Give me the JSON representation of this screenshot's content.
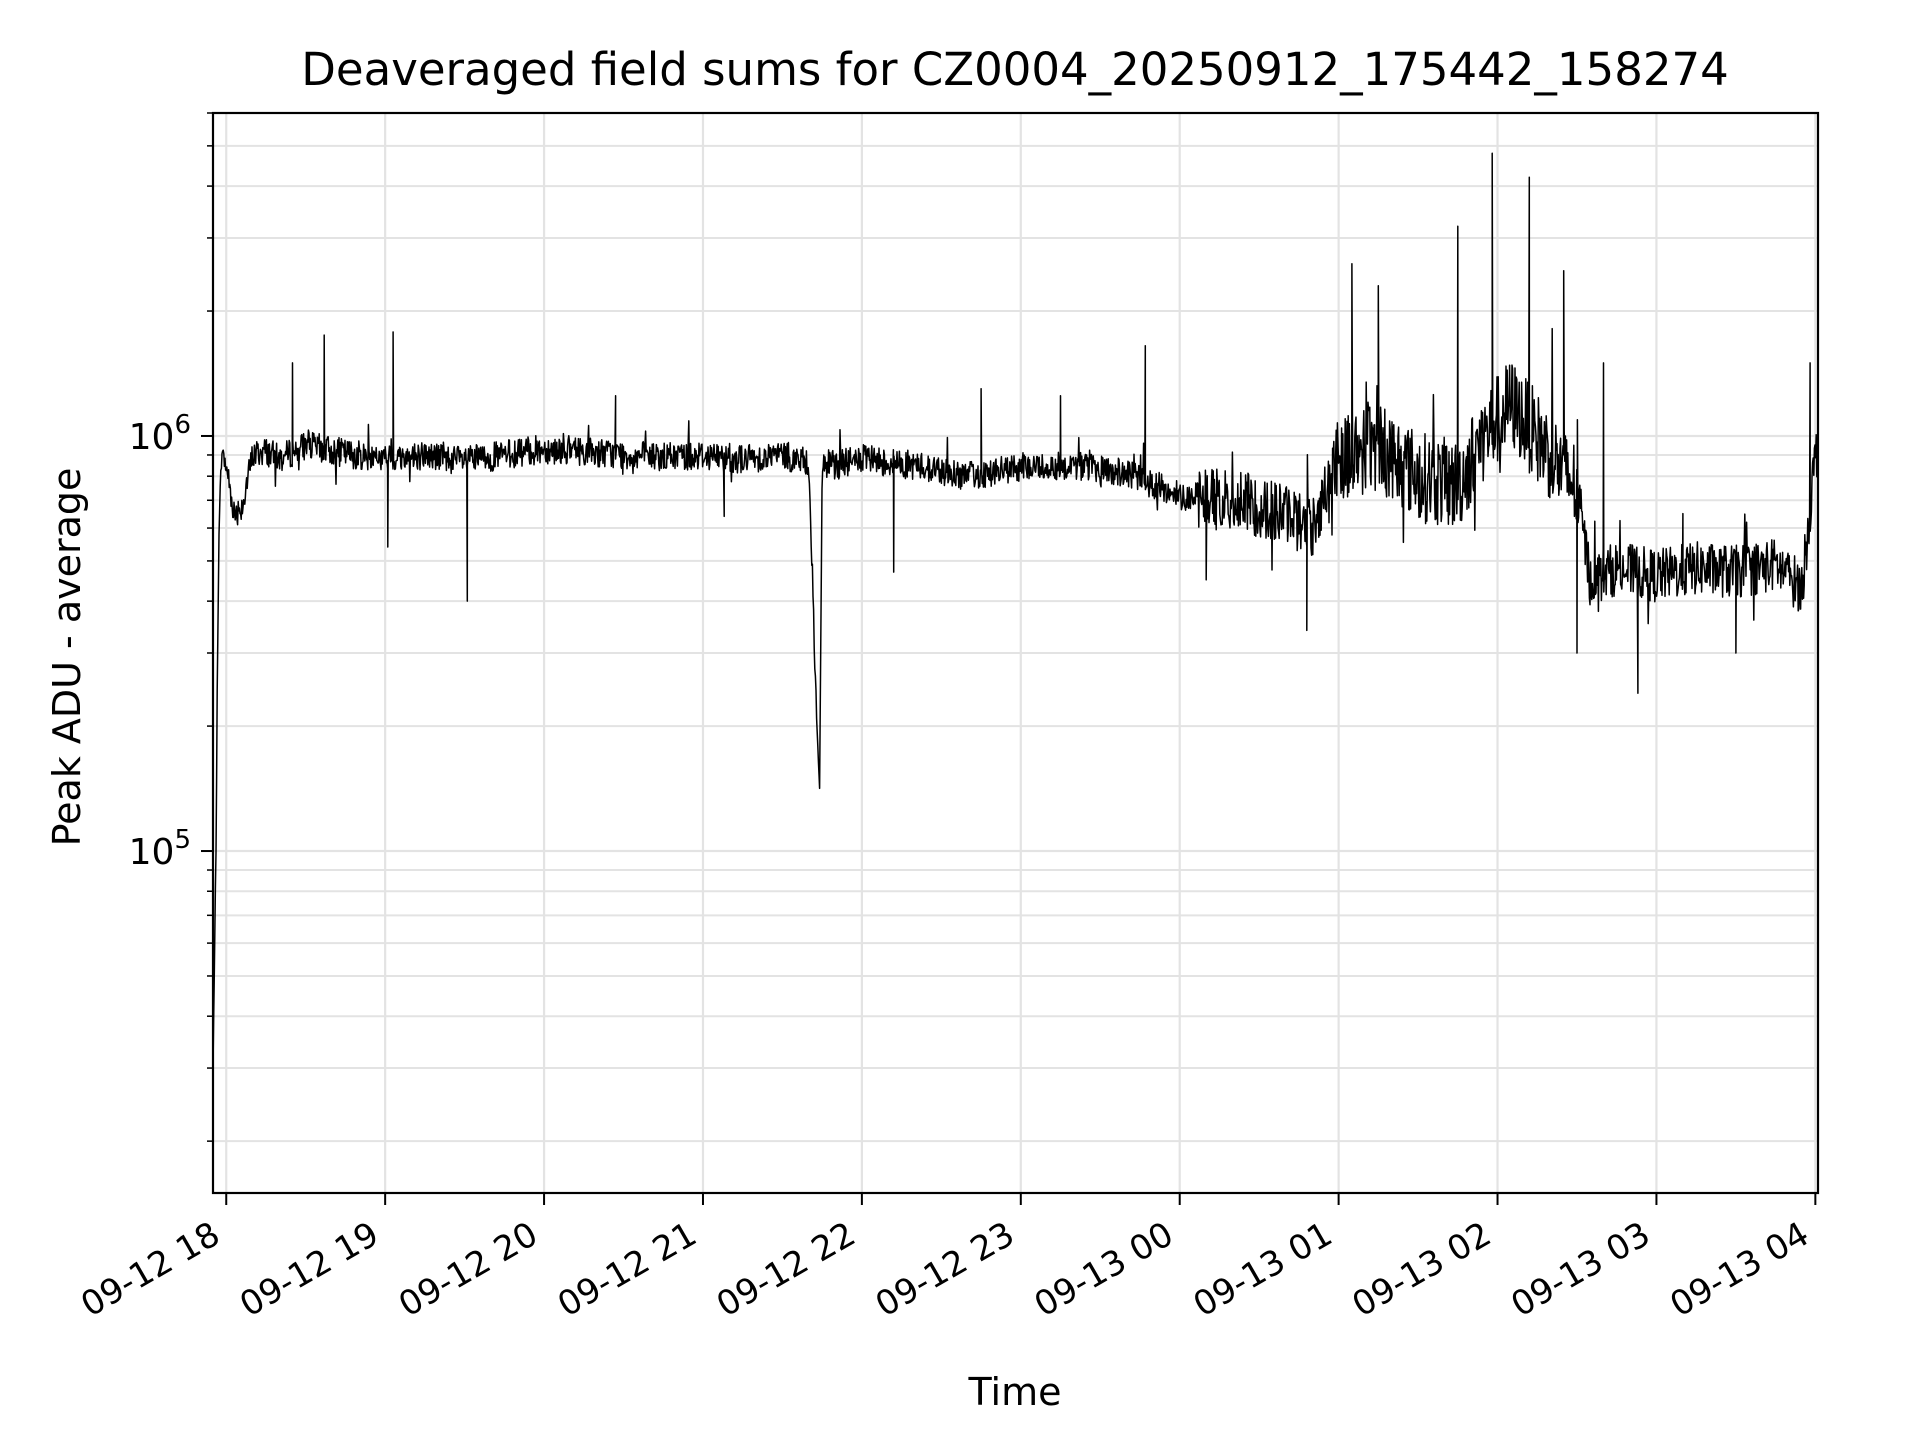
{
  "chart_data": {
    "type": "line",
    "title": "Deaveraged field sums for CZ0004_20250912_175442_158274",
    "xlabel": "Time",
    "ylabel": "Peak ADU - average",
    "yscale": "log",
    "ylim": [
      15000,
      6000000
    ],
    "xlim": [
      "2025-09-12 17:55",
      "2025-09-13 04:01"
    ],
    "grid": true,
    "line_color": "#000000",
    "x_ticks": [
      {
        "value": "2025-09-12 18:00",
        "label": "09-12 18"
      },
      {
        "value": "2025-09-12 19:00",
        "label": "09-12 19"
      },
      {
        "value": "2025-09-12 20:00",
        "label": "09-12 20"
      },
      {
        "value": "2025-09-12 21:00",
        "label": "09-12 21"
      },
      {
        "value": "2025-09-12 22:00",
        "label": "09-12 22"
      },
      {
        "value": "2025-09-12 23:00",
        "label": "09-12 23"
      },
      {
        "value": "2025-09-13 00:00",
        "label": "09-13 00"
      },
      {
        "value": "2025-09-13 01:00",
        "label": "09-13 01"
      },
      {
        "value": "2025-09-13 02:00",
        "label": "09-13 02"
      },
      {
        "value": "2025-09-13 03:00",
        "label": "09-13 03"
      },
      {
        "value": "2025-09-13 04:00",
        "label": "09-13 04"
      }
    ],
    "y_ticks": [
      {
        "value": 100000,
        "base": "10",
        "exp": "5"
      },
      {
        "value": 1000000,
        "base": "10",
        "exp": "6"
      }
    ],
    "series": [
      {
        "x": [
          "2025-09-12 17:55",
          "2025-09-12 17:56",
          "2025-09-12 17:57",
          "2025-09-12 17:58",
          "2025-09-12 18:00",
          "2025-09-12 18:03",
          "2025-09-12 18:06",
          "2025-09-12 18:10",
          "2025-09-12 18:15",
          "2025-09-12 18:20",
          "2025-09-12 18:30",
          "2025-09-12 18:40",
          "2025-09-12 18:50",
          "2025-09-12 19:00",
          "2025-09-12 19:15",
          "2025-09-12 19:30",
          "2025-09-12 19:45",
          "2025-09-12 20:00",
          "2025-09-12 20:15",
          "2025-09-12 20:30",
          "2025-09-12 20:45",
          "2025-09-12 21:00",
          "2025-09-12 21:15",
          "2025-09-12 21:30",
          "2025-09-12 21:40",
          "2025-09-12 21:43",
          "2025-09-12 21:44",
          "2025-09-12 21:45",
          "2025-09-12 21:50",
          "2025-09-12 22:00",
          "2025-09-12 22:20",
          "2025-09-12 22:40",
          "2025-09-12 23:00",
          "2025-09-12 23:20",
          "2025-09-12 23:40",
          "2025-09-13 00:00",
          "2025-09-13 00:20",
          "2025-09-13 00:40",
          "2025-09-13 00:50",
          "2025-09-13 01:00",
          "2025-09-13 01:15",
          "2025-09-13 01:30",
          "2025-09-13 01:45",
          "2025-09-13 01:55",
          "2025-09-13 02:05",
          "2025-09-13 02:20",
          "2025-09-13 02:30",
          "2025-09-13 02:35",
          "2025-09-13 02:45",
          "2025-09-13 03:00",
          "2025-09-13 03:15",
          "2025-09-13 03:30",
          "2025-09-13 03:45",
          "2025-09-13 03:55",
          "2025-09-13 04:00"
        ],
        "y": [
          30000,
          85000,
          450000,
          900000,
          850000,
          650000,
          680000,
          900000,
          920000,
          880000,
          950000,
          920000,
          900000,
          880000,
          900000,
          870000,
          900000,
          930000,
          920000,
          900000,
          890000,
          900000,
          880000,
          900000,
          860000,
          200000,
          130000,
          860000,
          850000,
          880000,
          850000,
          800000,
          840000,
          850000,
          810000,
          720000,
          700000,
          650000,
          600000,
          900000,
          950000,
          800000,
          760000,
          1000000,
          1200000,
          900000,
          750000,
          450000,
          480000,
          460000,
          480000,
          470000,
          490000,
          430000,
          900000
        ]
      }
    ],
    "spikes": [
      {
        "x": "2025-09-12 18:25",
        "y": 1500000
      },
      {
        "x": "2025-09-12 18:37",
        "y": 1750000
      },
      {
        "x": "2025-09-12 19:03",
        "y": 1780000
      },
      {
        "x": "2025-09-12 19:01",
        "y": 540000
      },
      {
        "x": "2025-09-12 19:31",
        "y": 400000
      },
      {
        "x": "2025-09-12 20:27",
        "y": 1250000
      },
      {
        "x": "2025-09-12 21:08",
        "y": 640000
      },
      {
        "x": "2025-09-12 22:12",
        "y": 470000
      },
      {
        "x": "2025-09-12 22:45",
        "y": 1300000
      },
      {
        "x": "2025-09-12 23:15",
        "y": 1250000
      },
      {
        "x": "2025-09-12 23:47",
        "y": 1650000
      },
      {
        "x": "2025-09-13 00:10",
        "y": 450000
      },
      {
        "x": "2025-09-13 00:48",
        "y": 340000
      },
      {
        "x": "2025-09-13 01:05",
        "y": 2600000
      },
      {
        "x": "2025-09-13 01:15",
        "y": 2300000
      },
      {
        "x": "2025-09-13 01:45",
        "y": 3200000
      },
      {
        "x": "2025-09-13 01:58",
        "y": 4800000
      },
      {
        "x": "2025-09-13 02:12",
        "y": 4200000
      },
      {
        "x": "2025-09-13 02:25",
        "y": 2500000
      },
      {
        "x": "2025-09-13 02:30",
        "y": 300000
      },
      {
        "x": "2025-09-13 02:40",
        "y": 1500000
      },
      {
        "x": "2025-09-13 02:53",
        "y": 240000
      },
      {
        "x": "2025-09-13 03:10",
        "y": 650000
      },
      {
        "x": "2025-09-13 03:30",
        "y": 300000
      },
      {
        "x": "2025-09-13 03:58",
        "y": 1500000
      }
    ]
  }
}
